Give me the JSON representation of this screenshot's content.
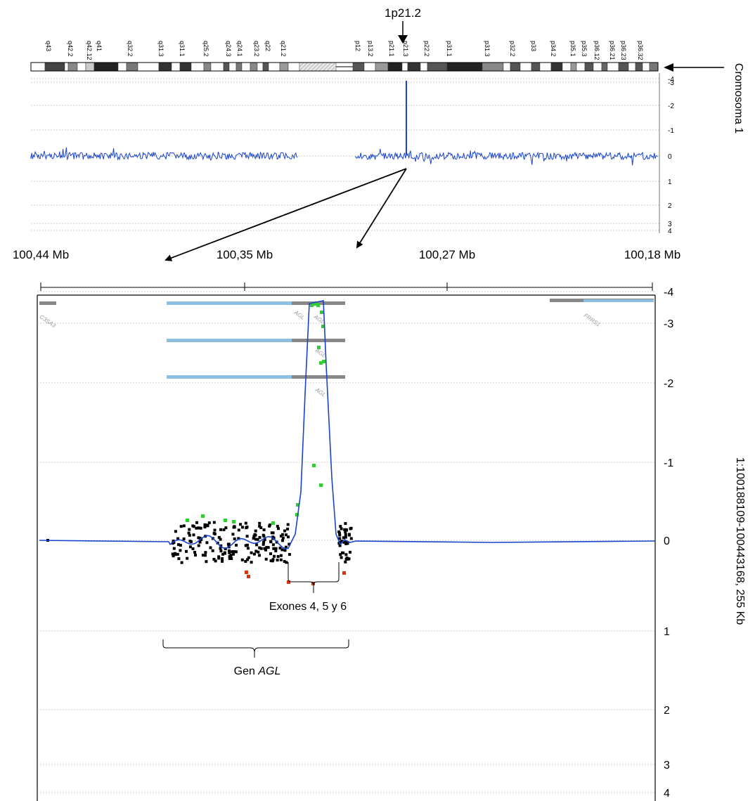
{
  "chromosome": {
    "band_marker": "1p21.2",
    "label": "Cromosoma 1",
    "q_bands": [
      "q43",
      "q42.2",
      "q42.12",
      "q41",
      "q32.2",
      "q31.3",
      "q31.1",
      "q25.2",
      "q24.3",
      "q24.1",
      "q23.2",
      "q22",
      "q21.2"
    ],
    "p_bands": [
      "p12",
      "p13.2",
      "p21.1",
      "p21.3",
      "p22.2",
      "p31.1",
      "p31.3",
      "p32.2",
      "p33",
      "p34.2",
      "p35.1",
      "p35.3",
      "p36.12",
      "p36.21",
      "p36.23",
      "p36.32"
    ]
  },
  "top_plot": {
    "y_ticks": [
      "-4",
      "-3",
      "-2",
      "-1",
      "0",
      "1",
      "2",
      "3",
      "4"
    ]
  },
  "coordinates": {
    "labels": [
      "100,44 Mb",
      "100,35 Mb",
      "100,27 Mb",
      "100,18 Mb"
    ]
  },
  "bottom_plot": {
    "y_ticks": [
      "-4",
      "-3",
      "-2",
      "-1",
      "0",
      "1",
      "2",
      "3",
      "4"
    ],
    "region_label": "1:100188109-100443168, 255 Kb",
    "gene_names": [
      "C3SA3",
      "AGL",
      "AGL",
      "AGL",
      "AGL",
      "FRRS1"
    ]
  },
  "annotations": {
    "exons": "Exones 4, 5 y 6",
    "gene_prefix": "Gen ",
    "gene_name": "AGL"
  },
  "colors": {
    "trace": "#1a44cc",
    "probe_normal": "#000000",
    "probe_gain": "#33cc33",
    "probe_loss": "#dd3311",
    "gene_bar": "#8fbfe0",
    "gene_bar_dark": "#888888"
  }
}
